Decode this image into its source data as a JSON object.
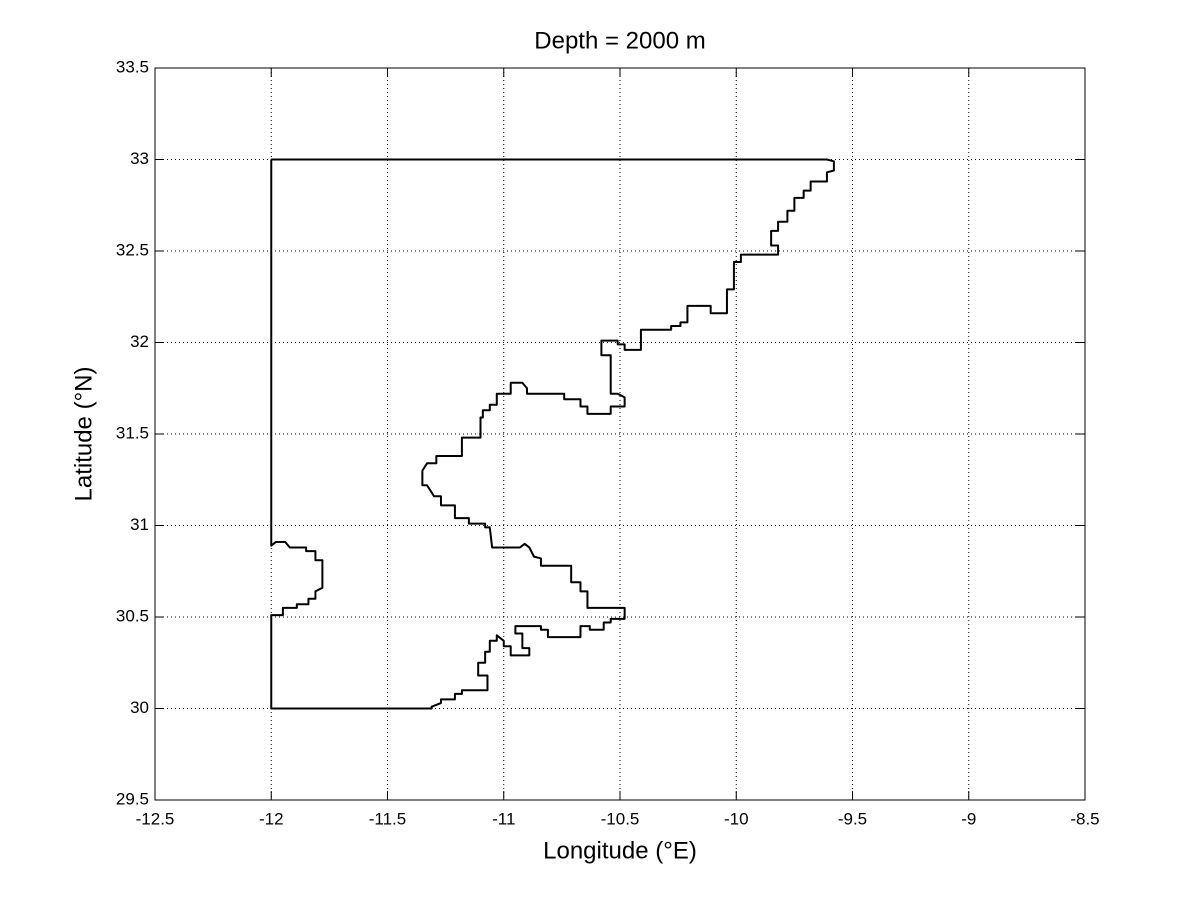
{
  "chart_data": {
    "type": "line",
    "title": "Depth = 2000 m",
    "x_label": "Longitude (°E)",
    "y_label": "Latitude (°N)",
    "color": "#000000",
    "grid": true,
    "xlim": [
      -12.5,
      -8.5
    ],
    "ylim": [
      29.5,
      33.5
    ],
    "xticks": [
      -12.5,
      -12,
      -11.5,
      -11,
      -10.5,
      -10,
      -9.5,
      -9,
      -8.5
    ],
    "yticks": [
      29.5,
      30,
      30.5,
      31,
      31.5,
      32,
      32.5,
      33,
      33.5
    ],
    "x": [
      -12.0,
      -9.61,
      -9.58,
      -9.58,
      -9.61,
      -9.61,
      -9.68,
      -9.68,
      -9.71,
      -9.71,
      -9.75,
      -9.75,
      -9.78,
      -9.78,
      -9.82,
      -9.82,
      -9.85,
      -9.85,
      -9.82,
      -9.82,
      -9.98,
      -9.98,
      -10.01,
      -10.01,
      -10.04,
      -10.04,
      -10.11,
      -10.11,
      -10.21,
      -10.21,
      -10.24,
      -10.24,
      -10.28,
      -10.28,
      -10.41,
      -10.41,
      -10.48,
      -10.48,
      -10.51,
      -10.51,
      -10.58,
      -10.58,
      -10.54,
      -10.54,
      -10.51,
      -10.48,
      -10.48,
      -10.54,
      -10.54,
      -10.64,
      -10.64,
      -10.67,
      -10.67,
      -10.74,
      -10.74,
      -10.9,
      -10.9,
      -10.92,
      -10.97,
      -10.97,
      -11.03,
      -11.03,
      -11.06,
      -11.06,
      -11.09,
      -11.09,
      -11.1,
      -11.1,
      -11.18,
      -11.18,
      -11.29,
      -11.29,
      -11.33,
      -11.35,
      -11.35,
      -11.33,
      -11.3,
      -11.27,
      -11.27,
      -11.21,
      -11.21,
      -11.15,
      -11.15,
      -11.08,
      -11.08,
      -11.06,
      -11.05,
      -10.93,
      -10.91,
      -10.89,
      -10.87,
      -10.84,
      -10.84,
      -10.71,
      -10.71,
      -10.67,
      -10.67,
      -10.64,
      -10.64,
      -10.48,
      -10.48,
      -10.54,
      -10.54,
      -10.57,
      -10.57,
      -10.63,
      -10.63,
      -10.67,
      -10.67,
      -10.81,
      -10.81,
      -10.84,
      -10.84,
      -10.95,
      -10.95,
      -10.92,
      -10.92,
      -10.89,
      -10.89,
      -10.97,
      -10.97,
      -11.0,
      -11.0,
      -11.03,
      -11.03,
      -11.06,
      -11.06,
      -11.08,
      -11.08,
      -11.11,
      -11.11,
      -11.07,
      -11.07,
      -11.18,
      -11.18,
      -11.21,
      -11.21,
      -11.27,
      -11.27,
      -11.31,
      -11.31,
      -12.0,
      -12.0,
      -11.95,
      -11.95,
      -11.89,
      -11.89,
      -11.84,
      -11.84,
      -11.81,
      -11.81,
      -11.78,
      -11.78,
      -11.81,
      -11.81,
      -11.85,
      -11.85,
      -11.92,
      -11.94,
      -11.98,
      -12.0,
      -12.0
    ],
    "values": [
      33.0,
      33.0,
      32.99,
      32.94,
      32.93,
      32.88,
      32.88,
      32.83,
      32.83,
      32.79,
      32.79,
      32.72,
      32.72,
      32.66,
      32.66,
      32.61,
      32.61,
      32.53,
      32.53,
      32.48,
      32.48,
      32.44,
      32.44,
      32.29,
      32.29,
      32.16,
      32.16,
      32.2,
      32.2,
      32.11,
      32.11,
      32.09,
      32.09,
      32.07,
      32.07,
      31.96,
      31.96,
      31.99,
      31.99,
      32.01,
      32.01,
      31.93,
      31.93,
      31.72,
      31.72,
      31.7,
      31.65,
      31.65,
      31.61,
      31.61,
      31.65,
      31.65,
      31.69,
      31.69,
      31.72,
      31.72,
      31.75,
      31.78,
      31.78,
      31.72,
      31.72,
      31.66,
      31.66,
      31.63,
      31.63,
      31.59,
      31.59,
      31.48,
      31.48,
      31.38,
      31.38,
      31.34,
      31.34,
      31.3,
      31.22,
      31.22,
      31.16,
      31.16,
      31.11,
      31.11,
      31.04,
      31.04,
      31.01,
      31.01,
      30.99,
      30.99,
      30.88,
      30.88,
      30.9,
      30.88,
      30.83,
      30.82,
      30.78,
      30.78,
      30.69,
      30.69,
      30.64,
      30.64,
      30.55,
      30.55,
      30.49,
      30.49,
      30.47,
      30.47,
      30.43,
      30.43,
      30.45,
      30.45,
      30.39,
      30.39,
      30.43,
      30.43,
      30.45,
      30.45,
      30.41,
      30.41,
      30.33,
      30.33,
      30.29,
      30.29,
      30.34,
      30.34,
      30.37,
      30.4,
      30.37,
      30.37,
      30.31,
      30.31,
      30.25,
      30.25,
      30.18,
      30.18,
      30.1,
      30.1,
      30.08,
      30.08,
      30.05,
      30.05,
      30.03,
      30.01,
      30.0,
      30.0,
      30.51,
      30.51,
      30.55,
      30.55,
      30.57,
      30.57,
      30.6,
      30.6,
      30.64,
      30.66,
      30.81,
      30.81,
      30.86,
      30.86,
      30.88,
      30.88,
      30.91,
      30.91,
      30.89,
      33.0
    ]
  }
}
